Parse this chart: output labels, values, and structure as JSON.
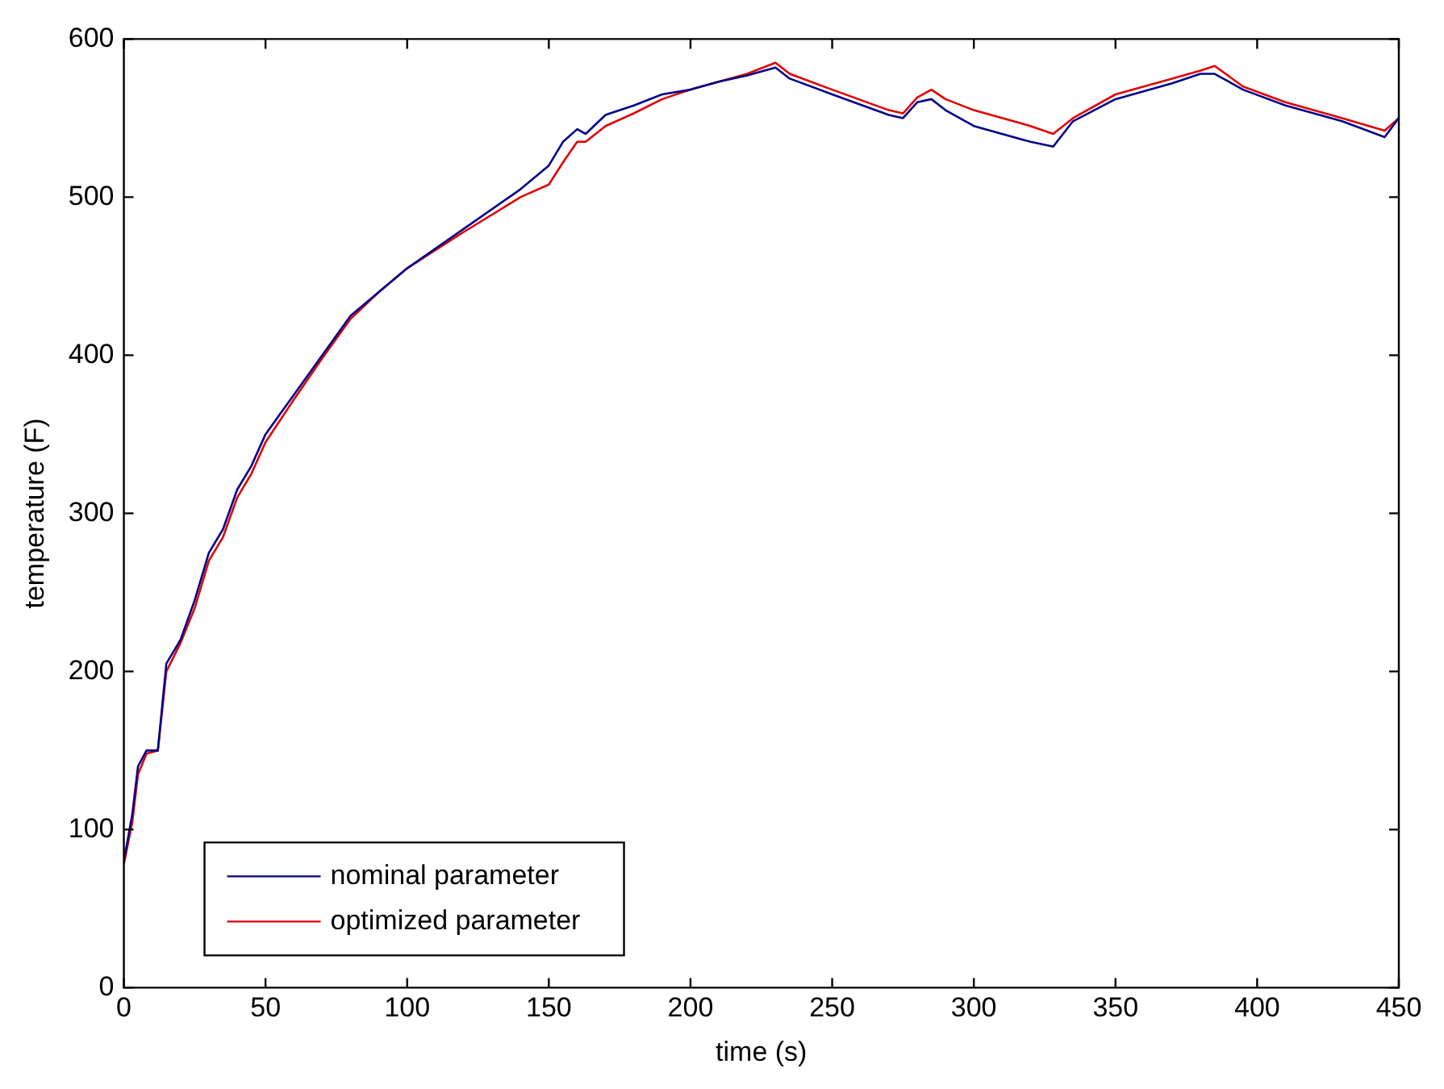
{
  "chart_data": {
    "type": "line",
    "xlabel": "time (s)",
    "ylabel": "temperature (F)",
    "xlim": [
      0,
      450
    ],
    "ylim": [
      0,
      600
    ],
    "xticks": [
      0,
      50,
      100,
      150,
      200,
      250,
      300,
      350,
      400,
      450
    ],
    "yticks": [
      0,
      100,
      200,
      300,
      400,
      500,
      600
    ],
    "grid": false,
    "legend": "bottom left",
    "marker": "none",
    "line_style": "solid",
    "series": [
      {
        "name": "nominal parameter",
        "color": "#00008b",
        "x": [
          0,
          3,
          5,
          8,
          12,
          15,
          20,
          25,
          30,
          35,
          40,
          45,
          50,
          60,
          70,
          80,
          90,
          100,
          120,
          140,
          150,
          155,
          160,
          163,
          170,
          180,
          190,
          200,
          210,
          220,
          230,
          235,
          250,
          270,
          275,
          280,
          285,
          290,
          300,
          320,
          328,
          335,
          350,
          370,
          380,
          385,
          395,
          410,
          430,
          445,
          450
        ],
        "values": [
          80,
          110,
          140,
          150,
          150,
          205,
          220,
          245,
          275,
          290,
          315,
          330,
          350,
          375,
          400,
          425,
          440,
          455,
          480,
          505,
          520,
          535,
          543,
          540,
          552,
          558,
          565,
          568,
          573,
          577,
          582,
          575,
          565,
          552,
          550,
          560,
          562,
          555,
          545,
          535,
          532,
          548,
          562,
          572,
          578,
          578,
          568,
          558,
          548,
          538,
          550
        ]
      },
      {
        "name": "optimized parameter",
        "color": "#e00000",
        "x": [
          0,
          3,
          5,
          8,
          12,
          15,
          20,
          25,
          30,
          35,
          40,
          45,
          50,
          60,
          70,
          80,
          90,
          100,
          120,
          140,
          150,
          155,
          160,
          163,
          170,
          180,
          190,
          200,
          210,
          220,
          230,
          235,
          250,
          270,
          275,
          280,
          285,
          290,
          300,
          320,
          328,
          335,
          350,
          370,
          380,
          385,
          395,
          410,
          430,
          445,
          450
        ],
        "values": [
          78,
          105,
          135,
          148,
          150,
          200,
          218,
          240,
          270,
          285,
          310,
          325,
          345,
          372,
          398,
          423,
          440,
          455,
          478,
          500,
          508,
          522,
          535,
          535,
          545,
          553,
          562,
          568,
          573,
          578,
          585,
          578,
          568,
          555,
          553,
          563,
          568,
          562,
          555,
          545,
          540,
          550,
          565,
          575,
          580,
          583,
          570,
          560,
          550,
          542,
          550
        ]
      }
    ]
  }
}
